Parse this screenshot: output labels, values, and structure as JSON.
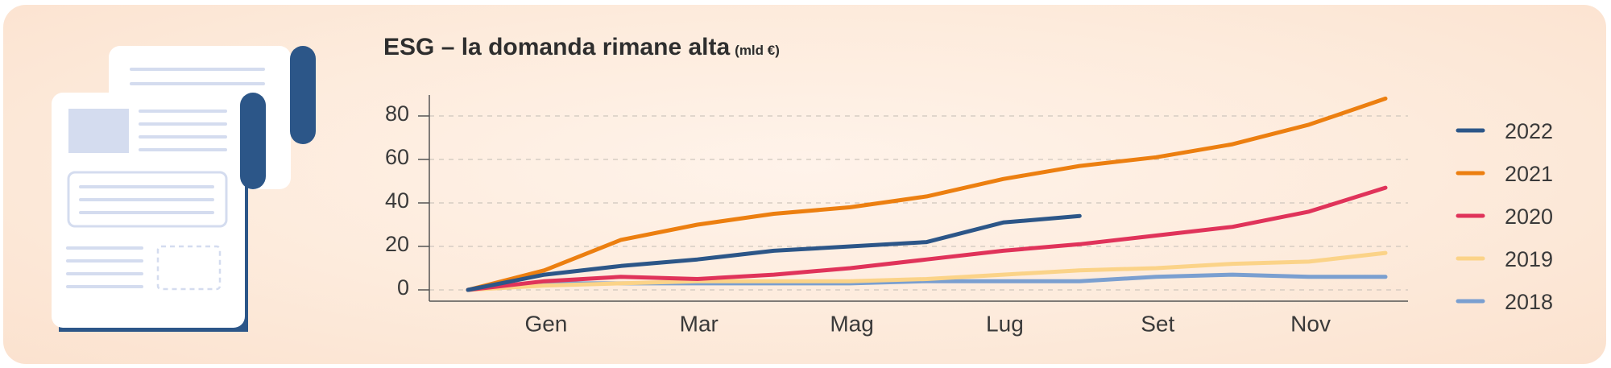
{
  "title": "ESG – la domanda rimane alta",
  "unit": "(mld €)",
  "chart_data": {
    "type": "line",
    "title": "ESG – la domanda rimane alta",
    "subtitle": "(mld €)",
    "xlabel": "",
    "ylabel": "",
    "ylim": [
      -8,
      90
    ],
    "xlim": [
      0,
      12.2
    ],
    "x_tick_labels": [
      {
        "x": 1,
        "label": "Gen"
      },
      {
        "x": 3,
        "label": "Mar"
      },
      {
        "x": 5,
        "label": "Mag"
      },
      {
        "x": 7,
        "label": "Lug"
      },
      {
        "x": 9,
        "label": "Set"
      },
      {
        "x": 11,
        "label": "Nov"
      }
    ],
    "y_ticks": [
      0,
      20,
      40,
      60,
      80
    ],
    "grid": "horizontal-dashed",
    "legend_position": "right",
    "series": [
      {
        "name": "2022",
        "color": "#2c5688",
        "x": [
          0,
          1,
          2,
          3,
          4,
          5,
          6,
          7,
          8
        ],
        "y": [
          0,
          7,
          11,
          14,
          18,
          20,
          22,
          31,
          34
        ]
      },
      {
        "name": "2021",
        "color": "#ec7f10",
        "x": [
          0,
          1,
          2,
          3,
          4,
          5,
          6,
          7,
          8,
          9,
          10,
          11,
          12
        ],
        "y": [
          0,
          9,
          23,
          30,
          35,
          38,
          43,
          51,
          57,
          61,
          67,
          76,
          88
        ]
      },
      {
        "name": "2020",
        "color": "#e0335a",
        "x": [
          0,
          1,
          2,
          3,
          4,
          5,
          6,
          7,
          8,
          9,
          10,
          11,
          12
        ],
        "y": [
          0,
          4,
          6,
          5,
          7,
          10,
          14,
          18,
          21,
          25,
          29,
          36,
          47
        ]
      },
      {
        "name": "2019",
        "color": "#fbd388",
        "x": [
          0,
          1,
          2,
          3,
          4,
          5,
          6,
          7,
          8,
          9,
          10,
          11,
          12
        ],
        "y": [
          0,
          2,
          3,
          4,
          4,
          4,
          5,
          7,
          9,
          10,
          12,
          13,
          17
        ]
      },
      {
        "name": "2018",
        "color": "#7a9fd0",
        "x": [
          0,
          1,
          2,
          3,
          4,
          5,
          6,
          7,
          8,
          9,
          10,
          11,
          12
        ],
        "y": [
          0,
          3,
          3,
          3,
          3,
          3,
          4,
          4,
          4,
          6,
          7,
          6,
          6
        ]
      }
    ]
  }
}
